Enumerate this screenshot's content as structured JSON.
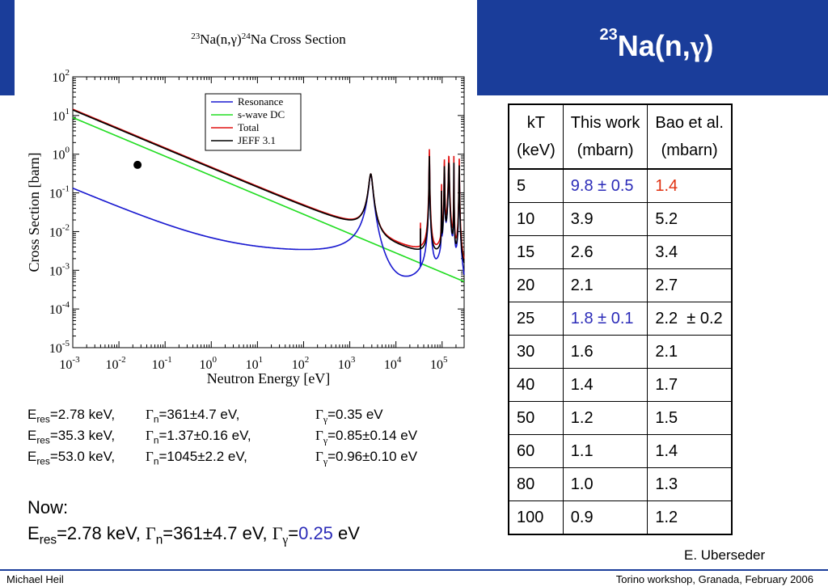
{
  "slide": {
    "title_sup": "23",
    "title_main": "Na(n,",
    "title_gamma": "γ",
    "title_close": ")"
  },
  "chart_data": {
    "type": "line",
    "title_iso1": "23",
    "title_p1": "Na(n,",
    "title_gamma": "γ",
    "title_p2": ")",
    "title_iso2": "24",
    "title_p3": "Na Cross Section",
    "xlabel": "Neutron Energy [eV]",
    "ylabel": "Cross Section [barn]",
    "x_scale": "log",
    "y_scale": "log",
    "xlim": [
      0.001,
      300000
    ],
    "ylim": [
      1e-05,
      100
    ],
    "x_ticks": [
      {
        "base": "10",
        "exp": "-3"
      },
      {
        "base": "10",
        "exp": "-2"
      },
      {
        "base": "10",
        "exp": "-1"
      },
      {
        "base": "10",
        "exp": "0"
      },
      {
        "base": "10",
        "exp": "1"
      },
      {
        "base": "10",
        "exp": "2"
      },
      {
        "base": "10",
        "exp": "3"
      },
      {
        "base": "10",
        "exp": "4"
      },
      {
        "base": "10",
        "exp": "5"
      }
    ],
    "y_ticks": [
      {
        "base": "10",
        "exp": "2"
      },
      {
        "base": "10",
        "exp": "1"
      },
      {
        "base": "10",
        "exp": "0"
      },
      {
        "base": "10",
        "exp": "-1"
      },
      {
        "base": "10",
        "exp": "-2"
      },
      {
        "base": "10",
        "exp": "-3"
      },
      {
        "base": "10",
        "exp": "-4"
      },
      {
        "base": "10",
        "exp": "-5"
      }
    ],
    "legend_position": "top-right",
    "series": [
      {
        "name": "Resonance",
        "color": "#1a1ad0"
      },
      {
        "name": "s-wave DC",
        "color": "#22dd22"
      },
      {
        "name": "Total",
        "color": "#e01010"
      },
      {
        "name": "JEFF 3.1",
        "color": "#000000"
      }
    ],
    "marker": {
      "x": 0.0253,
      "y": 0.53
    }
  },
  "table": {
    "header": [
      {
        "line1": "kT",
        "line2": "(keV)"
      },
      {
        "line1": "This work",
        "line2": "(mbarn)"
      },
      {
        "line1": "Bao et al.",
        "line2": "(mbarn)"
      }
    ],
    "rows": [
      [
        "5",
        "9.8 ± 0.5",
        "1.4"
      ],
      [
        "10",
        "3.9",
        "5.2"
      ],
      [
        "15",
        "2.6",
        "3.4"
      ],
      [
        "20",
        "2.1",
        "2.7"
      ],
      [
        "25",
        "1.8 ± 0.1",
        "2.2  ± 0.2"
      ],
      [
        "30",
        "1.6",
        "2.1"
      ],
      [
        "40",
        "1.4",
        "1.7"
      ],
      [
        "50",
        "1.2",
        "1.5"
      ],
      [
        "60",
        "1.1",
        "1.4"
      ],
      [
        "80",
        "1.0",
        "1.3"
      ],
      [
        "100",
        "0.9",
        "1.2"
      ]
    ],
    "highlight_blue": [
      [
        0,
        1
      ],
      [
        4,
        1
      ]
    ],
    "highlight_red": [
      [
        0,
        2
      ]
    ]
  },
  "resonances": [
    {
      "e_label": "E",
      "e_sub": "res",
      "e_val": "=2.78 keV,",
      "gn_sym": "Γ",
      "gn_sub": "n",
      "gn_val": "=361±4.7 eV,",
      "gg_sym": "Γ",
      "gg_sub": "γ",
      "gg_val": "=0.35 eV"
    },
    {
      "e_label": "E",
      "e_sub": "res",
      "e_val": "=35.3 keV,",
      "gn_sym": "Γ",
      "gn_sub": "n",
      "gn_val": "=1.37±0.16 eV,",
      "gg_sym": "Γ",
      "gg_sub": "γ",
      "gg_val": "=0.85±0.14 eV"
    },
    {
      "e_label": "E",
      "e_sub": "res",
      "e_val": "=53.0 keV,",
      "gn_sym": "Γ",
      "gn_sub": "n",
      "gn_val": "=1045±2.2 eV,",
      "gg_sym": "Γ",
      "gg_sub": "γ",
      "gg_val": "=0.96±0.10 eV"
    }
  ],
  "now": {
    "label": "Now:",
    "e_label": "E",
    "e_sub": "res",
    "e_val": "=2.78 keV, ",
    "gn_sym": "Γ",
    "gn_sub": "n",
    "gn_val": "=361±4.7 eV, ",
    "gg_sym": "Γ",
    "gg_sub": "γ",
    "gg_eq": "=",
    "gg_val": "0.25",
    "gg_unit": " eV"
  },
  "credit": "E. Uberseder",
  "footer": {
    "left": "Michael Heil",
    "right": "Torino workshop, Granada,  February 2006"
  }
}
